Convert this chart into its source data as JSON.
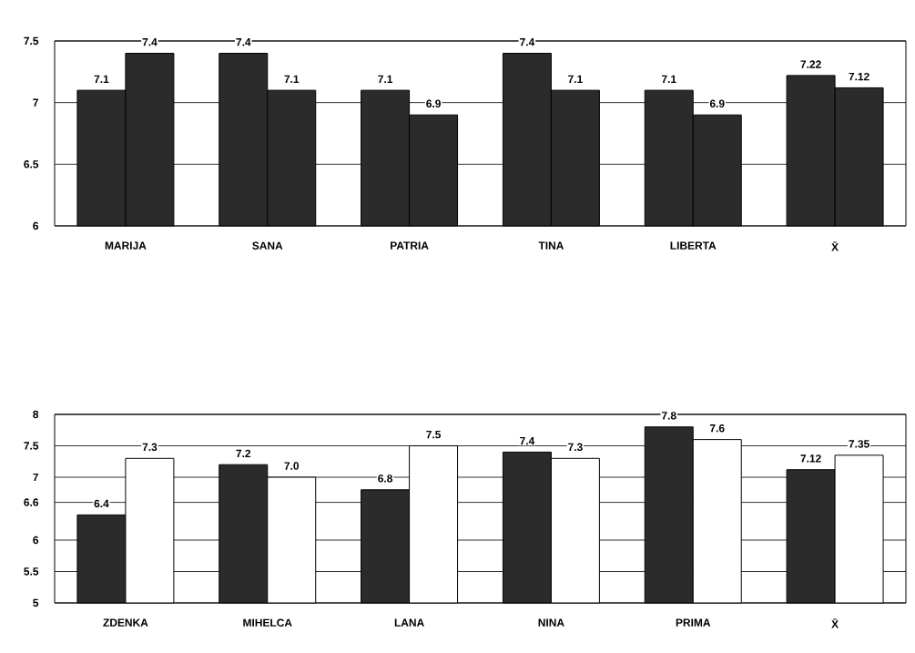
{
  "chart_data": [
    {
      "type": "bar",
      "categories": [
        "MARIJA",
        "SANA",
        "PATRIA",
        "TINA",
        "LIBERTA",
        "X̄"
      ],
      "series": [
        {
          "color": "#2b2b2b",
          "values": [
            7.1,
            7.4,
            7.1,
            7.4,
            7.1,
            7.22
          ],
          "value_labels": [
            "7.1",
            "7.4",
            "7.1",
            "7.4",
            "7.1",
            "7.22"
          ]
        },
        {
          "color": "#2b2b2b",
          "values": [
            7.4,
            7.1,
            6.9,
            7.1,
            6.9,
            7.12
          ],
          "value_labels": [
            "7.4",
            "7.1",
            "6.9",
            "7.1",
            "6.9",
            "7.12"
          ]
        }
      ],
      "ylim": [
        6,
        7.5
      ],
      "yticks": [
        6,
        6.5,
        7,
        7.5
      ],
      "grid": "y"
    },
    {
      "type": "bar",
      "categories": [
        "ZDENKA",
        "MIHELCA",
        "LANA",
        "NINA",
        "PRIMA",
        "X̄"
      ],
      "series": [
        {
          "color": "#2b2b2b",
          "values": [
            6.4,
            7.2,
            6.8,
            7.4,
            7.8,
            7.12
          ],
          "value_labels": [
            "6.4",
            "7.2",
            "6.8",
            "7.4",
            "7.8",
            "7.12"
          ]
        },
        {
          "color": "#ffffff",
          "values": [
            7.3,
            7.0,
            7.5,
            7.3,
            7.6,
            7.35
          ],
          "value_labels": [
            "7.3",
            "7.0",
            "7.5",
            "7.3",
            "7.6",
            "7.35"
          ]
        }
      ],
      "ylim": [
        5,
        8
      ],
      "yticks": [
        5,
        5.5,
        6,
        6.6,
        7,
        7.5,
        8
      ],
      "grid": "y"
    }
  ]
}
